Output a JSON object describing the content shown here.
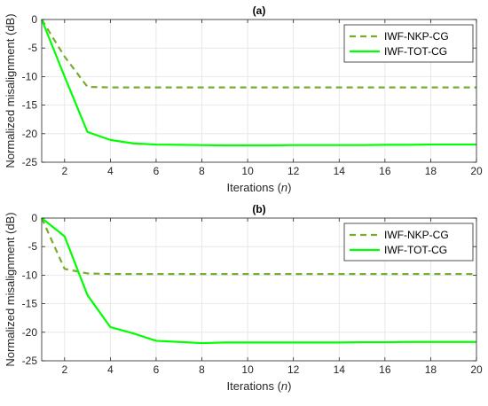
{
  "chart_data": [
    {
      "type": "line",
      "title": "(a)",
      "xlabel": "Iterations (",
      "xlabel_var": "n",
      "xlabel_end": ")",
      "ylabel": "Normalized misalignment (dB)",
      "xlim": [
        1,
        20
      ],
      "ylim": [
        -25,
        0
      ],
      "xticks": [
        2,
        4,
        6,
        8,
        10,
        12,
        14,
        16,
        18,
        20
      ],
      "yticks": [
        0,
        -5,
        -10,
        -15,
        -20,
        -25
      ],
      "grid": true,
      "legend_position": "top-right",
      "series": [
        {
          "name": "IWF-NKP-CG",
          "color": "#77AC30",
          "dash": "dashed",
          "x": [
            1,
            2,
            3,
            4,
            5,
            6,
            7,
            8,
            9,
            10,
            11,
            12,
            13,
            14,
            15,
            16,
            17,
            18,
            19,
            20
          ],
          "values": [
            0,
            -6.5,
            -11.8,
            -11.9,
            -11.9,
            -11.9,
            -11.9,
            -11.9,
            -11.9,
            -11.9,
            -11.9,
            -11.9,
            -11.9,
            -11.9,
            -11.9,
            -11.9,
            -11.9,
            -11.9,
            -11.9,
            -11.9
          ]
        },
        {
          "name": "IWF-TOT-CG",
          "color": "#00FF00",
          "dash": "solid",
          "x": [
            1,
            2,
            3,
            4,
            5,
            6,
            7,
            8,
            9,
            10,
            11,
            12,
            13,
            14,
            15,
            16,
            17,
            18,
            19,
            20
          ],
          "values": [
            0,
            -10.0,
            -19.7,
            -21.1,
            -21.7,
            -21.9,
            -21.95,
            -22.0,
            -22.05,
            -22.05,
            -22.05,
            -22.0,
            -22.0,
            -22.0,
            -22.0,
            -21.95,
            -21.95,
            -21.9,
            -21.9,
            -21.9
          ]
        }
      ]
    },
    {
      "type": "line",
      "title": "(b)",
      "xlabel": "Iterations (",
      "xlabel_var": "n",
      "xlabel_end": ")",
      "ylabel": "Normalized misalignment (dB)",
      "xlim": [
        1,
        20
      ],
      "ylim": [
        -25,
        0
      ],
      "xticks": [
        2,
        4,
        6,
        8,
        10,
        12,
        14,
        16,
        18,
        20
      ],
      "yticks": [
        0,
        -5,
        -10,
        -15,
        -20,
        -25
      ],
      "grid": true,
      "legend_position": "top-right",
      "series": [
        {
          "name": "IWF-NKP-CG",
          "color": "#77AC30",
          "dash": "dashed",
          "x": [
            1,
            2,
            3,
            4,
            5,
            6,
            7,
            8,
            9,
            10,
            11,
            12,
            13,
            14,
            15,
            16,
            17,
            18,
            19,
            20
          ],
          "values": [
            0,
            -8.9,
            -9.7,
            -9.8,
            -9.8,
            -9.8,
            -9.8,
            -9.8,
            -9.8,
            -9.8,
            -9.8,
            -9.8,
            -9.8,
            -9.8,
            -9.8,
            -9.8,
            -9.8,
            -9.8,
            -9.8,
            -9.8
          ]
        },
        {
          "name": "IWF-TOT-CG",
          "color": "#00FF00",
          "dash": "solid",
          "x": [
            1,
            2,
            3,
            4,
            5,
            6,
            7,
            8,
            9,
            10,
            11,
            12,
            13,
            14,
            15,
            16,
            17,
            18,
            19,
            20
          ],
          "values": [
            0,
            -3.2,
            -13.5,
            -19.1,
            -20.2,
            -21.5,
            -21.7,
            -21.9,
            -21.8,
            -21.8,
            -21.8,
            -21.8,
            -21.8,
            -21.8,
            -21.75,
            -21.75,
            -21.7,
            -21.7,
            -21.7,
            -21.7
          ]
        }
      ]
    }
  ]
}
